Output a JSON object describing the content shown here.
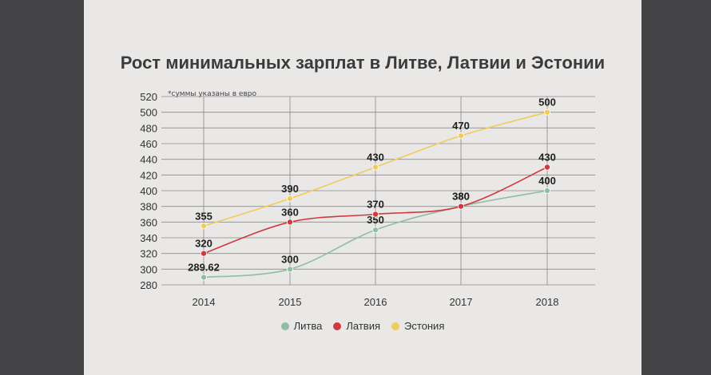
{
  "chart_data": {
    "type": "line",
    "title": "Рост минимальных зарплат в Литве, Латвии и Эстонии",
    "note": "*суммы указаны в евро",
    "categories": [
      "2014",
      "2015",
      "2016",
      "2017",
      "2018"
    ],
    "ylim": [
      280,
      520
    ],
    "yticks": [
      280,
      300,
      320,
      340,
      360,
      380,
      400,
      420,
      440,
      460,
      480,
      500,
      520
    ],
    "grid": true,
    "legend_position": "bottom",
    "series": [
      {
        "name": "Литва",
        "color": "#8fbfa3",
        "values": [
          289.62,
          300,
          350,
          380,
          400
        ],
        "labels": [
          "289.62",
          "300",
          "350",
          "380",
          "400"
        ]
      },
      {
        "name": "Латвия",
        "color": "#cf3a3e",
        "values": [
          320,
          360,
          370,
          380,
          430
        ],
        "labels": [
          "320",
          "360",
          "370",
          "380",
          "430"
        ]
      },
      {
        "name": "Эстония",
        "color": "#f0cc5a",
        "values": [
          355,
          390,
          430,
          470,
          500
        ],
        "labels": [
          "355",
          "390",
          "430",
          "470",
          "500"
        ]
      }
    ]
  }
}
